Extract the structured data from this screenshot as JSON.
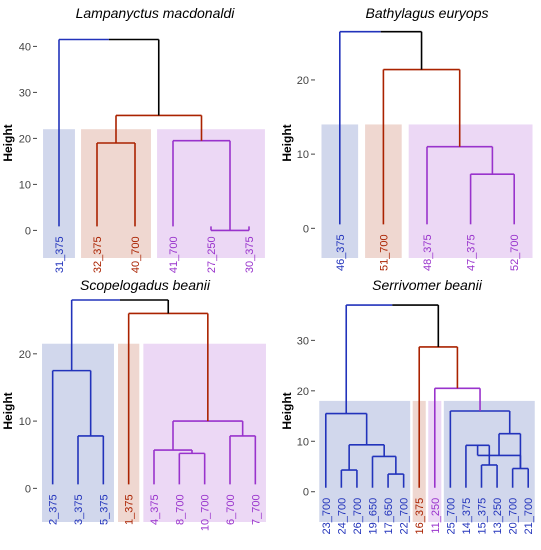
{
  "colors": {
    "blue": "#2233bb",
    "red": "#aa2200",
    "purple": "#9933cc",
    "black": "#000000",
    "blue_fill": "#ccd3ea",
    "red_fill": "#edd3cb",
    "purple_fill": "#ead4f4"
  },
  "chart_data": [
    {
      "type": "dendrogram",
      "title": "Lampanyctus macdonaldi",
      "ylabel": "Height",
      "yticks": [
        0,
        10,
        20,
        30,
        40
      ],
      "ylim": [
        -6,
        44
      ],
      "cut_height": 22,
      "leaves": [
        {
          "label": "31_375",
          "color": "blue"
        },
        {
          "label": "32_375",
          "color": "red"
        },
        {
          "label": "40_700",
          "color": "red"
        },
        {
          "label": "41_700",
          "color": "purple"
        },
        {
          "label": "27_250",
          "color": "purple"
        },
        {
          "label": "30_375",
          "color": "purple"
        }
      ],
      "clusters": [
        {
          "color": "blue",
          "leaves": [
            0,
            0
          ]
        },
        {
          "color": "red",
          "leaves": [
            1,
            2
          ]
        },
        {
          "color": "purple",
          "leaves": [
            3,
            5
          ]
        }
      ],
      "merges": [
        {
          "a": "L4",
          "b": "L5",
          "h": 0,
          "color": "purple"
        },
        {
          "a": "L3",
          "b": "M0",
          "h": 19.5,
          "color": "purple"
        },
        {
          "a": "L1",
          "b": "L2",
          "h": 19,
          "color": "red"
        },
        {
          "a": "M2",
          "b": "M1",
          "h": 25,
          "color": "red"
        },
        {
          "a": "L0",
          "b": "M3",
          "h": 41.5,
          "color": "black",
          "left_color": "blue"
        }
      ]
    },
    {
      "type": "dendrogram",
      "title": "Bathylagus euryops",
      "ylabel": "Height",
      "yticks": [
        0,
        10,
        20
      ],
      "ylim": [
        -4,
        27
      ],
      "cut_height": 14,
      "leaves": [
        {
          "label": "46_375",
          "color": "blue"
        },
        {
          "label": "51_700",
          "color": "red"
        },
        {
          "label": "48_375",
          "color": "purple"
        },
        {
          "label": "47_375",
          "color": "purple"
        },
        {
          "label": "52_700",
          "color": "purple"
        }
      ],
      "clusters": [
        {
          "color": "blue",
          "leaves": [
            0,
            0
          ]
        },
        {
          "color": "red",
          "leaves": [
            1,
            1
          ]
        },
        {
          "color": "purple",
          "leaves": [
            2,
            4
          ]
        }
      ],
      "merges": [
        {
          "a": "L3",
          "b": "L4",
          "h": 7.3,
          "color": "purple"
        },
        {
          "a": "L2",
          "b": "M0",
          "h": 11,
          "color": "purple"
        },
        {
          "a": "L1",
          "b": "M1",
          "h": 21.4,
          "color": "red"
        },
        {
          "a": "L0",
          "b": "M2",
          "h": 26.5,
          "color": "black",
          "left_color": "blue"
        }
      ]
    },
    {
      "type": "dendrogram",
      "title": "Scopelogadus beanii",
      "ylabel": "Height",
      "yticks": [
        0,
        10,
        20
      ],
      "ylim": [
        -5,
        28
      ],
      "cut_height": 21.5,
      "leaves": [
        {
          "label": "2_375",
          "color": "blue"
        },
        {
          "label": "3_375",
          "color": "blue"
        },
        {
          "label": "5_375",
          "color": "blue"
        },
        {
          "label": "1_375",
          "color": "red"
        },
        {
          "label": "4_375",
          "color": "purple"
        },
        {
          "label": "8_700",
          "color": "purple"
        },
        {
          "label": "10_700",
          "color": "purple"
        },
        {
          "label": "6_700",
          "color": "purple"
        },
        {
          "label": "7_700",
          "color": "purple"
        }
      ],
      "clusters": [
        {
          "color": "blue",
          "leaves": [
            0,
            2
          ]
        },
        {
          "color": "red",
          "leaves": [
            3,
            3
          ]
        },
        {
          "color": "purple",
          "leaves": [
            4,
            8
          ]
        }
      ],
      "merges": [
        {
          "a": "L1",
          "b": "L2",
          "h": 7.8,
          "color": "blue"
        },
        {
          "a": "L0",
          "b": "M0",
          "h": 17.5,
          "color": "blue"
        },
        {
          "a": "L5",
          "b": "L6",
          "h": 5.2,
          "color": "purple"
        },
        {
          "a": "L4",
          "b": "M2",
          "h": 5.7,
          "color": "purple"
        },
        {
          "a": "L7",
          "b": "L8",
          "h": 7.8,
          "color": "purple"
        },
        {
          "a": "M3",
          "b": "M4",
          "h": 10,
          "color": "purple"
        },
        {
          "a": "L3",
          "b": "M5",
          "h": 26,
          "color": "red"
        },
        {
          "a": "M1",
          "b": "M6",
          "h": 28,
          "color": "black",
          "left_color": "blue"
        }
      ]
    },
    {
      "type": "dendrogram",
      "title": "Serrivomer beanii",
      "ylabel": "Height",
      "yticks": [
        0,
        10,
        20,
        30
      ],
      "ylim": [
        -6,
        38
      ],
      "cut_height": 18,
      "leaves": [
        {
          "label": "23_700",
          "color": "blue"
        },
        {
          "label": "24_700",
          "color": "blue"
        },
        {
          "label": "26_700",
          "color": "blue"
        },
        {
          "label": "19_650",
          "color": "blue"
        },
        {
          "label": "17_650",
          "color": "blue"
        },
        {
          "label": "22_700",
          "color": "blue"
        },
        {
          "label": "16_375",
          "color": "red"
        },
        {
          "label": "11_250",
          "color": "purple"
        },
        {
          "label": "25_700",
          "color": "blue"
        },
        {
          "label": "14_375",
          "color": "blue"
        },
        {
          "label": "15_375",
          "color": "blue"
        },
        {
          "label": "13_250",
          "color": "blue"
        },
        {
          "label": "20_700",
          "color": "blue"
        },
        {
          "label": "21_700",
          "color": "blue"
        }
      ],
      "clusters": [
        {
          "color": "blue",
          "leaves": [
            0,
            5
          ]
        },
        {
          "color": "red",
          "leaves": [
            6,
            6
          ]
        },
        {
          "color": "purple",
          "leaves": [
            7,
            7
          ]
        },
        {
          "color": "blue",
          "leaves": [
            8,
            13
          ]
        }
      ],
      "merges": [
        {
          "a": "L1",
          "b": "L2",
          "h": 4.3,
          "color": "blue"
        },
        {
          "a": "L4",
          "b": "L5",
          "h": 3.5,
          "color": "blue"
        },
        {
          "a": "L3",
          "b": "M1",
          "h": 7,
          "color": "blue"
        },
        {
          "a": "M0",
          "b": "M2",
          "h": 9.3,
          "color": "blue"
        },
        {
          "a": "L0",
          "b": "M3",
          "h": 15.5,
          "color": "blue"
        },
        {
          "a": "L10",
          "b": "L11",
          "h": 5.3,
          "color": "blue"
        },
        {
          "a": "L12",
          "b": "L13",
          "h": 4.6,
          "color": "blue"
        },
        {
          "a": "L9",
          "b": "M5",
          "h": 9.2,
          "color": "blue"
        },
        {
          "a": "M6",
          "b": "M7",
          "h": 7.2,
          "color": "blue"
        },
        {
          "a": "M8",
          "b": "M6",
          "h": 11.5,
          "color": "blue"
        },
        {
          "a": "L8",
          "b": "M9",
          "h": 16,
          "color": "blue"
        },
        {
          "a": "L7",
          "b": "M10",
          "h": 20.5,
          "color": "purple"
        },
        {
          "a": "L6",
          "b": "M11",
          "h": 28.7,
          "color": "red"
        },
        {
          "a": "M4",
          "b": "M12",
          "h": 37,
          "color": "black",
          "left_color": "blue"
        }
      ]
    }
  ]
}
